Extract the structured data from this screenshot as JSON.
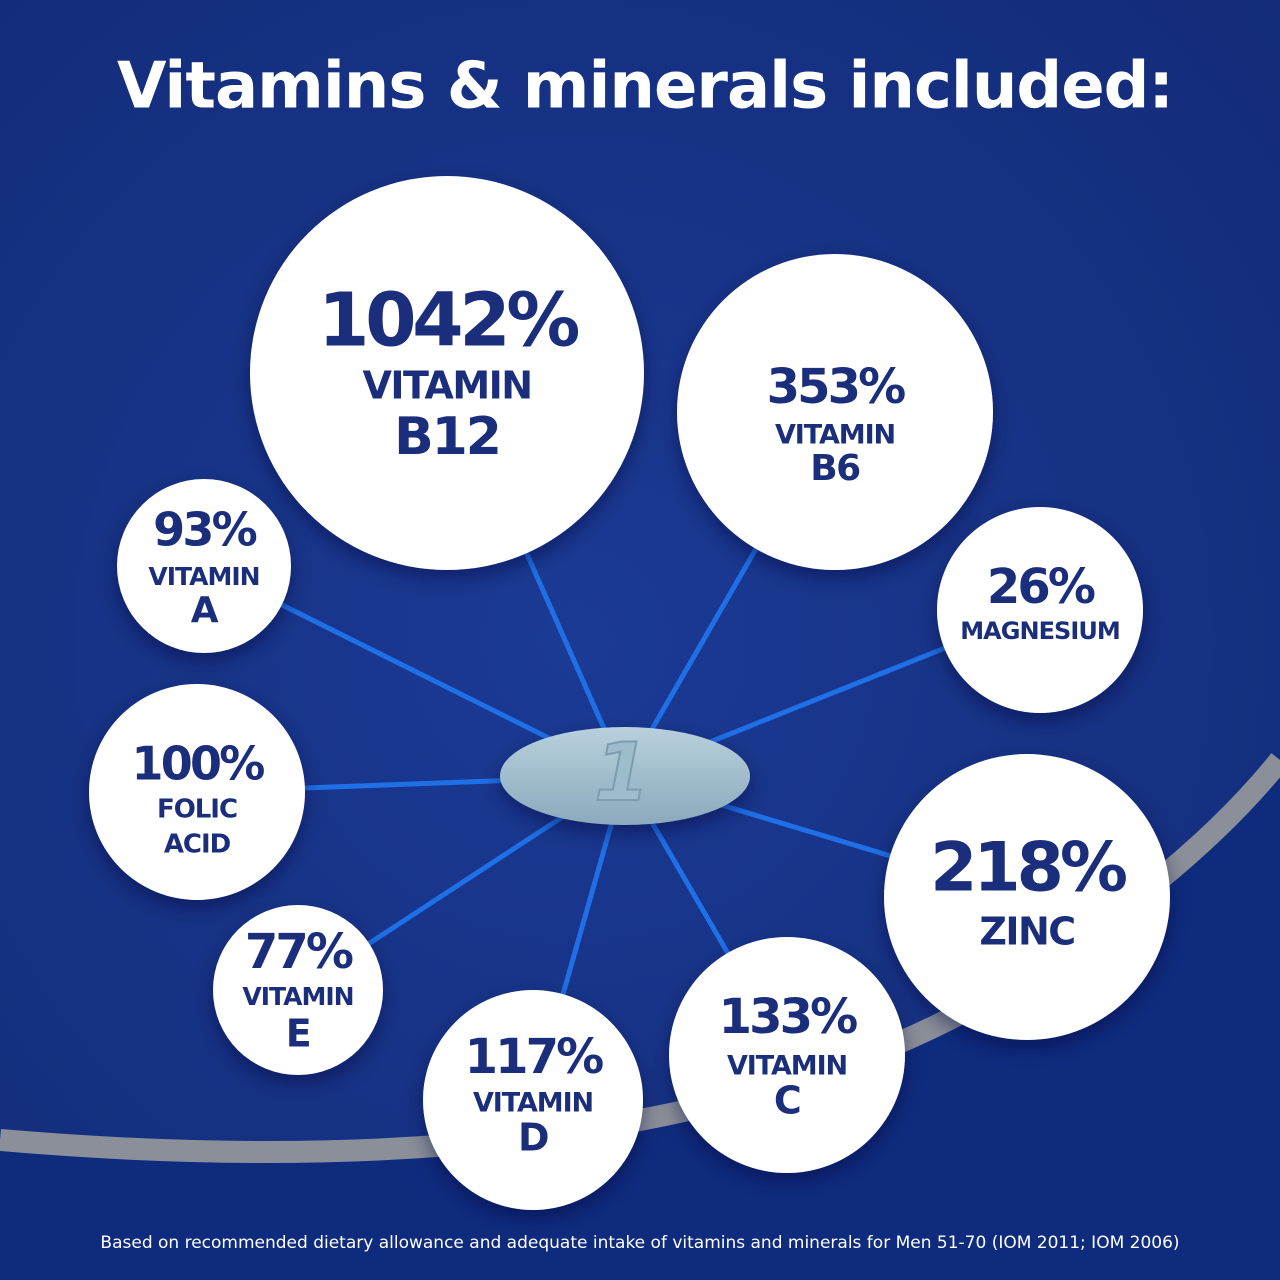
{
  "header": {
    "title": "Vitamins & minerals included:"
  },
  "items": [
    {
      "percent": "1042%",
      "lines": [
        "VITAMIN",
        "B12"
      ]
    },
    {
      "percent": "353%",
      "lines": [
        "VITAMIN",
        "B6"
      ]
    },
    {
      "percent": "93%",
      "lines": [
        "VITAMIN",
        "A"
      ]
    },
    {
      "percent": "26%",
      "lines": [
        "MAGNESIUM"
      ]
    },
    {
      "percent": "100%",
      "lines": [
        "FOLIC",
        "ACID"
      ]
    },
    {
      "percent": "218%",
      "lines": [
        "ZINC"
      ]
    },
    {
      "percent": "77%",
      "lines": [
        "VITAMIN",
        "E"
      ]
    },
    {
      "percent": "117%",
      "lines": [
        "VITAMIN",
        "D"
      ]
    },
    {
      "percent": "133%",
      "lines": [
        "VITAMIN",
        "C"
      ]
    }
  ],
  "footnote": "Based on recommended dietary allowance and adequate intake of vitamins and minerals for Men 51-70 (IOM 2011; IOM 2006)"
}
